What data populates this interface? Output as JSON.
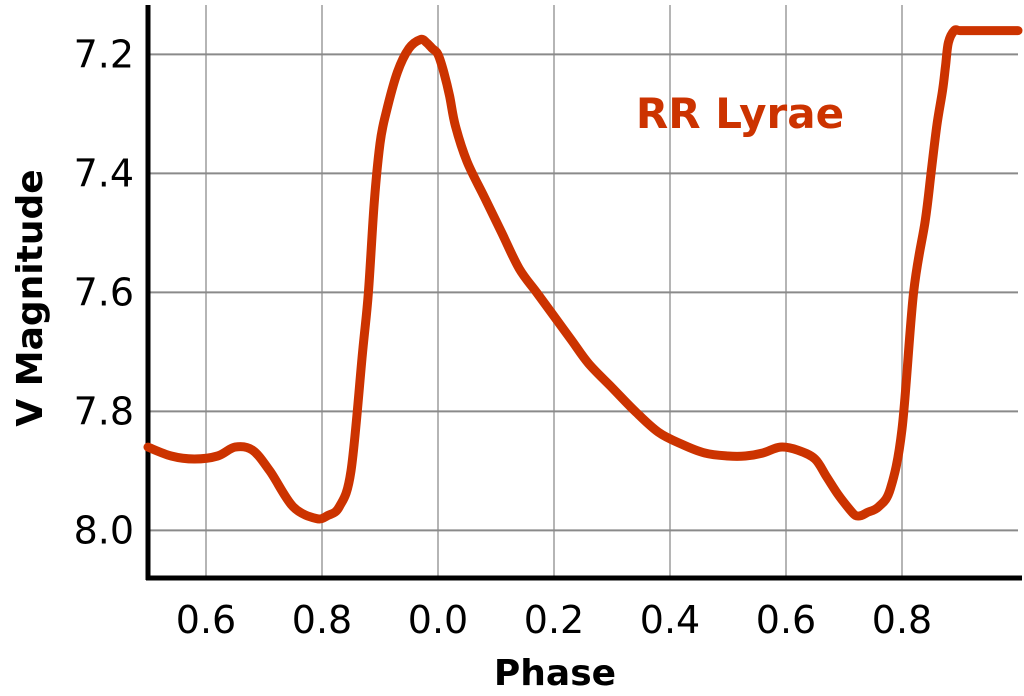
{
  "chart_data": {
    "type": "line",
    "title": "",
    "xlabel": "Phase",
    "ylabel": "V Magnitude",
    "annotation": "RR Lyrae",
    "x_tick_labels": [
      "0.6",
      "0.8",
      "0.0",
      "0.2",
      "0.4",
      "0.6",
      "0.8"
    ],
    "y_tick_labels": [
      "7.2",
      "7.4",
      "7.6",
      "7.8",
      "8.0"
    ],
    "y_ticks": [
      7.2,
      7.4,
      7.6,
      7.8,
      8.0
    ],
    "y_inverted": true,
    "ylim": [
      8.08,
      7.117
    ],
    "grid": true,
    "colors": {
      "line": "#cc3300",
      "annotation": "#cc3300",
      "grid": "#999999",
      "axis": "#000000"
    },
    "series": [
      {
        "x": [
          -0.5,
          -0.46,
          -0.42,
          -0.38,
          -0.35,
          -0.32,
          -0.29,
          -0.25,
          -0.21,
          -0.19,
          -0.17,
          -0.15,
          -0.13,
          -0.12,
          -0.11,
          -0.1,
          -0.09,
          -0.07,
          -0.05,
          -0.03,
          -0.02,
          -0.01,
          0.0,
          0.01,
          0.02,
          0.03,
          0.05,
          0.08,
          0.11,
          0.14,
          0.17,
          0.2,
          0.23,
          0.26,
          0.3,
          0.34,
          0.38,
          0.42,
          0.46,
          0.5,
          0.53,
          0.56,
          0.59,
          0.62,
          0.65,
          0.67,
          0.69,
          0.71,
          0.72,
          0.73,
          0.74,
          0.76,
          0.78,
          0.8,
          0.82,
          0.84,
          0.85,
          0.86,
          0.87,
          0.875,
          0.88,
          0.89,
          0.9,
          0.92,
          0.94,
          0.96,
          0.98,
          1.0
        ],
        "y": [
          7.86,
          7.875,
          7.88,
          7.875,
          7.86,
          7.865,
          7.9,
          7.96,
          7.98,
          7.975,
          7.96,
          7.9,
          7.7,
          7.6,
          7.45,
          7.35,
          7.3,
          7.23,
          7.19,
          7.175,
          7.18,
          7.19,
          7.2,
          7.23,
          7.27,
          7.32,
          7.38,
          7.44,
          7.5,
          7.56,
          7.6,
          7.64,
          7.68,
          7.72,
          7.76,
          7.8,
          7.835,
          7.855,
          7.87,
          7.875,
          7.875,
          7.87,
          7.86,
          7.865,
          7.88,
          7.91,
          7.94,
          7.965,
          7.975,
          7.975,
          7.97,
          7.96,
          7.93,
          7.83,
          7.6,
          7.48,
          7.4,
          7.32,
          7.26,
          7.22,
          7.18,
          7.16,
          7.16,
          7.16,
          7.16,
          7.16,
          7.16,
          7.16
        ]
      }
    ]
  }
}
